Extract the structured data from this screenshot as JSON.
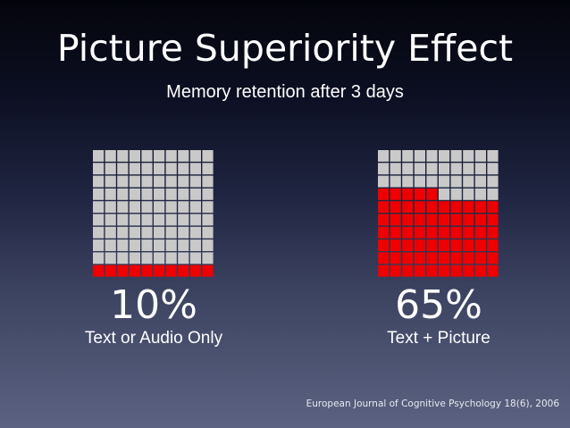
{
  "title": "Picture Superiority Effect",
  "subtitle": "Memory retention after 3 days",
  "source": "European Journal of Cognitive Psychology 18(6), 2006",
  "colors": {
    "filled": "#ee0000",
    "empty": "#c9c9c9"
  },
  "chart_data": [
    {
      "type": "waffle",
      "grid": {
        "rows": 10,
        "cols": 10
      },
      "value": 10,
      "value_label": "10%",
      "category": "Text or Audio Only"
    },
    {
      "type": "waffle",
      "grid": {
        "rows": 10,
        "cols": 10
      },
      "value": 65,
      "value_label": "65%",
      "category": "Text + Picture"
    }
  ]
}
